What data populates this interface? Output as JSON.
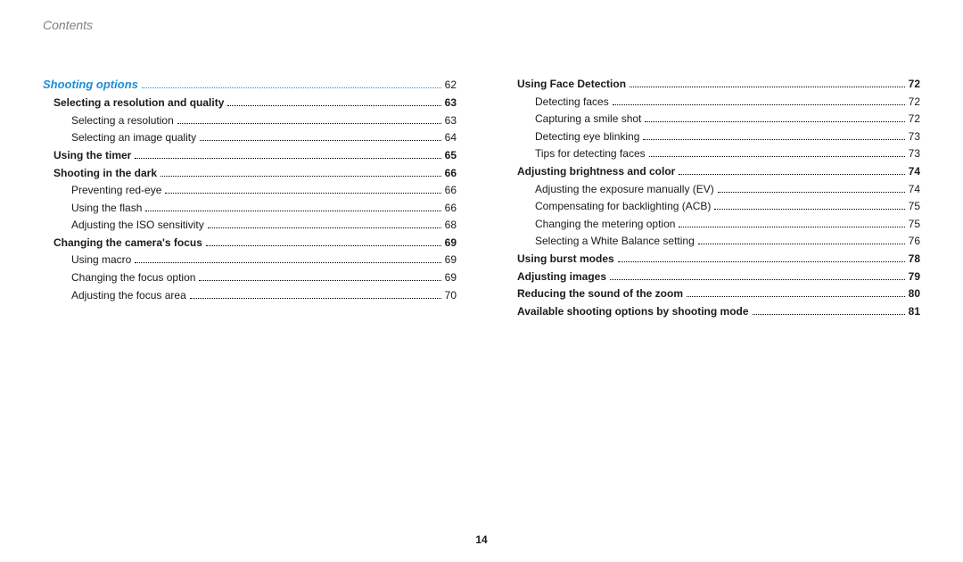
{
  "header": {
    "title": "Contents"
  },
  "pageNumber": "14",
  "toc": {
    "section": {
      "label": "Shooting options",
      "page": "62"
    },
    "leftColumn": [
      {
        "level": 2,
        "label": "Selecting a resolution and quality",
        "page": "63"
      },
      {
        "level": 3,
        "label": "Selecting a resolution",
        "page": "63"
      },
      {
        "level": 3,
        "label": "Selecting an image quality",
        "page": "64"
      },
      {
        "level": 2,
        "label": "Using the timer",
        "page": "65"
      },
      {
        "level": 2,
        "label": "Shooting in the dark",
        "page": "66"
      },
      {
        "level": 3,
        "label": "Preventing red-eye",
        "page": "66"
      },
      {
        "level": 3,
        "label": "Using the flash",
        "page": "66"
      },
      {
        "level": 3,
        "label": "Adjusting the ISO sensitivity",
        "page": "68"
      },
      {
        "level": 2,
        "label": "Changing the camera's focus",
        "page": "69"
      },
      {
        "level": 3,
        "label": "Using macro",
        "page": "69"
      },
      {
        "level": 3,
        "label": "Changing the focus option",
        "page": "69"
      },
      {
        "level": 3,
        "label": "Adjusting the focus area",
        "page": "70"
      }
    ],
    "rightColumn": [
      {
        "level": 2,
        "label": "Using Face Detection",
        "page": "72"
      },
      {
        "level": 3,
        "label": "Detecting faces",
        "page": "72"
      },
      {
        "level": 3,
        "label": "Capturing a smile shot",
        "page": "72"
      },
      {
        "level": 3,
        "label": "Detecting eye blinking",
        "page": "73"
      },
      {
        "level": 3,
        "label": "Tips for detecting faces",
        "page": "73"
      },
      {
        "level": 2,
        "label": "Adjusting brightness and color",
        "page": "74"
      },
      {
        "level": 3,
        "label": "Adjusting the exposure manually (EV)",
        "page": "74"
      },
      {
        "level": 3,
        "label": "Compensating for backlighting (ACB)",
        "page": "75"
      },
      {
        "level": 3,
        "label": "Changing the metering option",
        "page": "75"
      },
      {
        "level": 3,
        "label": "Selecting a White Balance setting",
        "page": "76"
      },
      {
        "level": 2,
        "label": "Using burst modes",
        "page": "78"
      },
      {
        "level": 2,
        "label": "Adjusting images",
        "page": "79"
      },
      {
        "level": 2,
        "label": "Reducing the sound of the zoom",
        "page": "80"
      },
      {
        "level": 2,
        "label": "Available shooting options by shooting mode",
        "page": "81"
      }
    ]
  },
  "style": {
    "accent": "#1f8dd6",
    "text": "#1a1a1a",
    "muted": "#808080",
    "background": "#ffffff",
    "fonts": {
      "body": 12,
      "header": 14,
      "section": 13
    }
  }
}
